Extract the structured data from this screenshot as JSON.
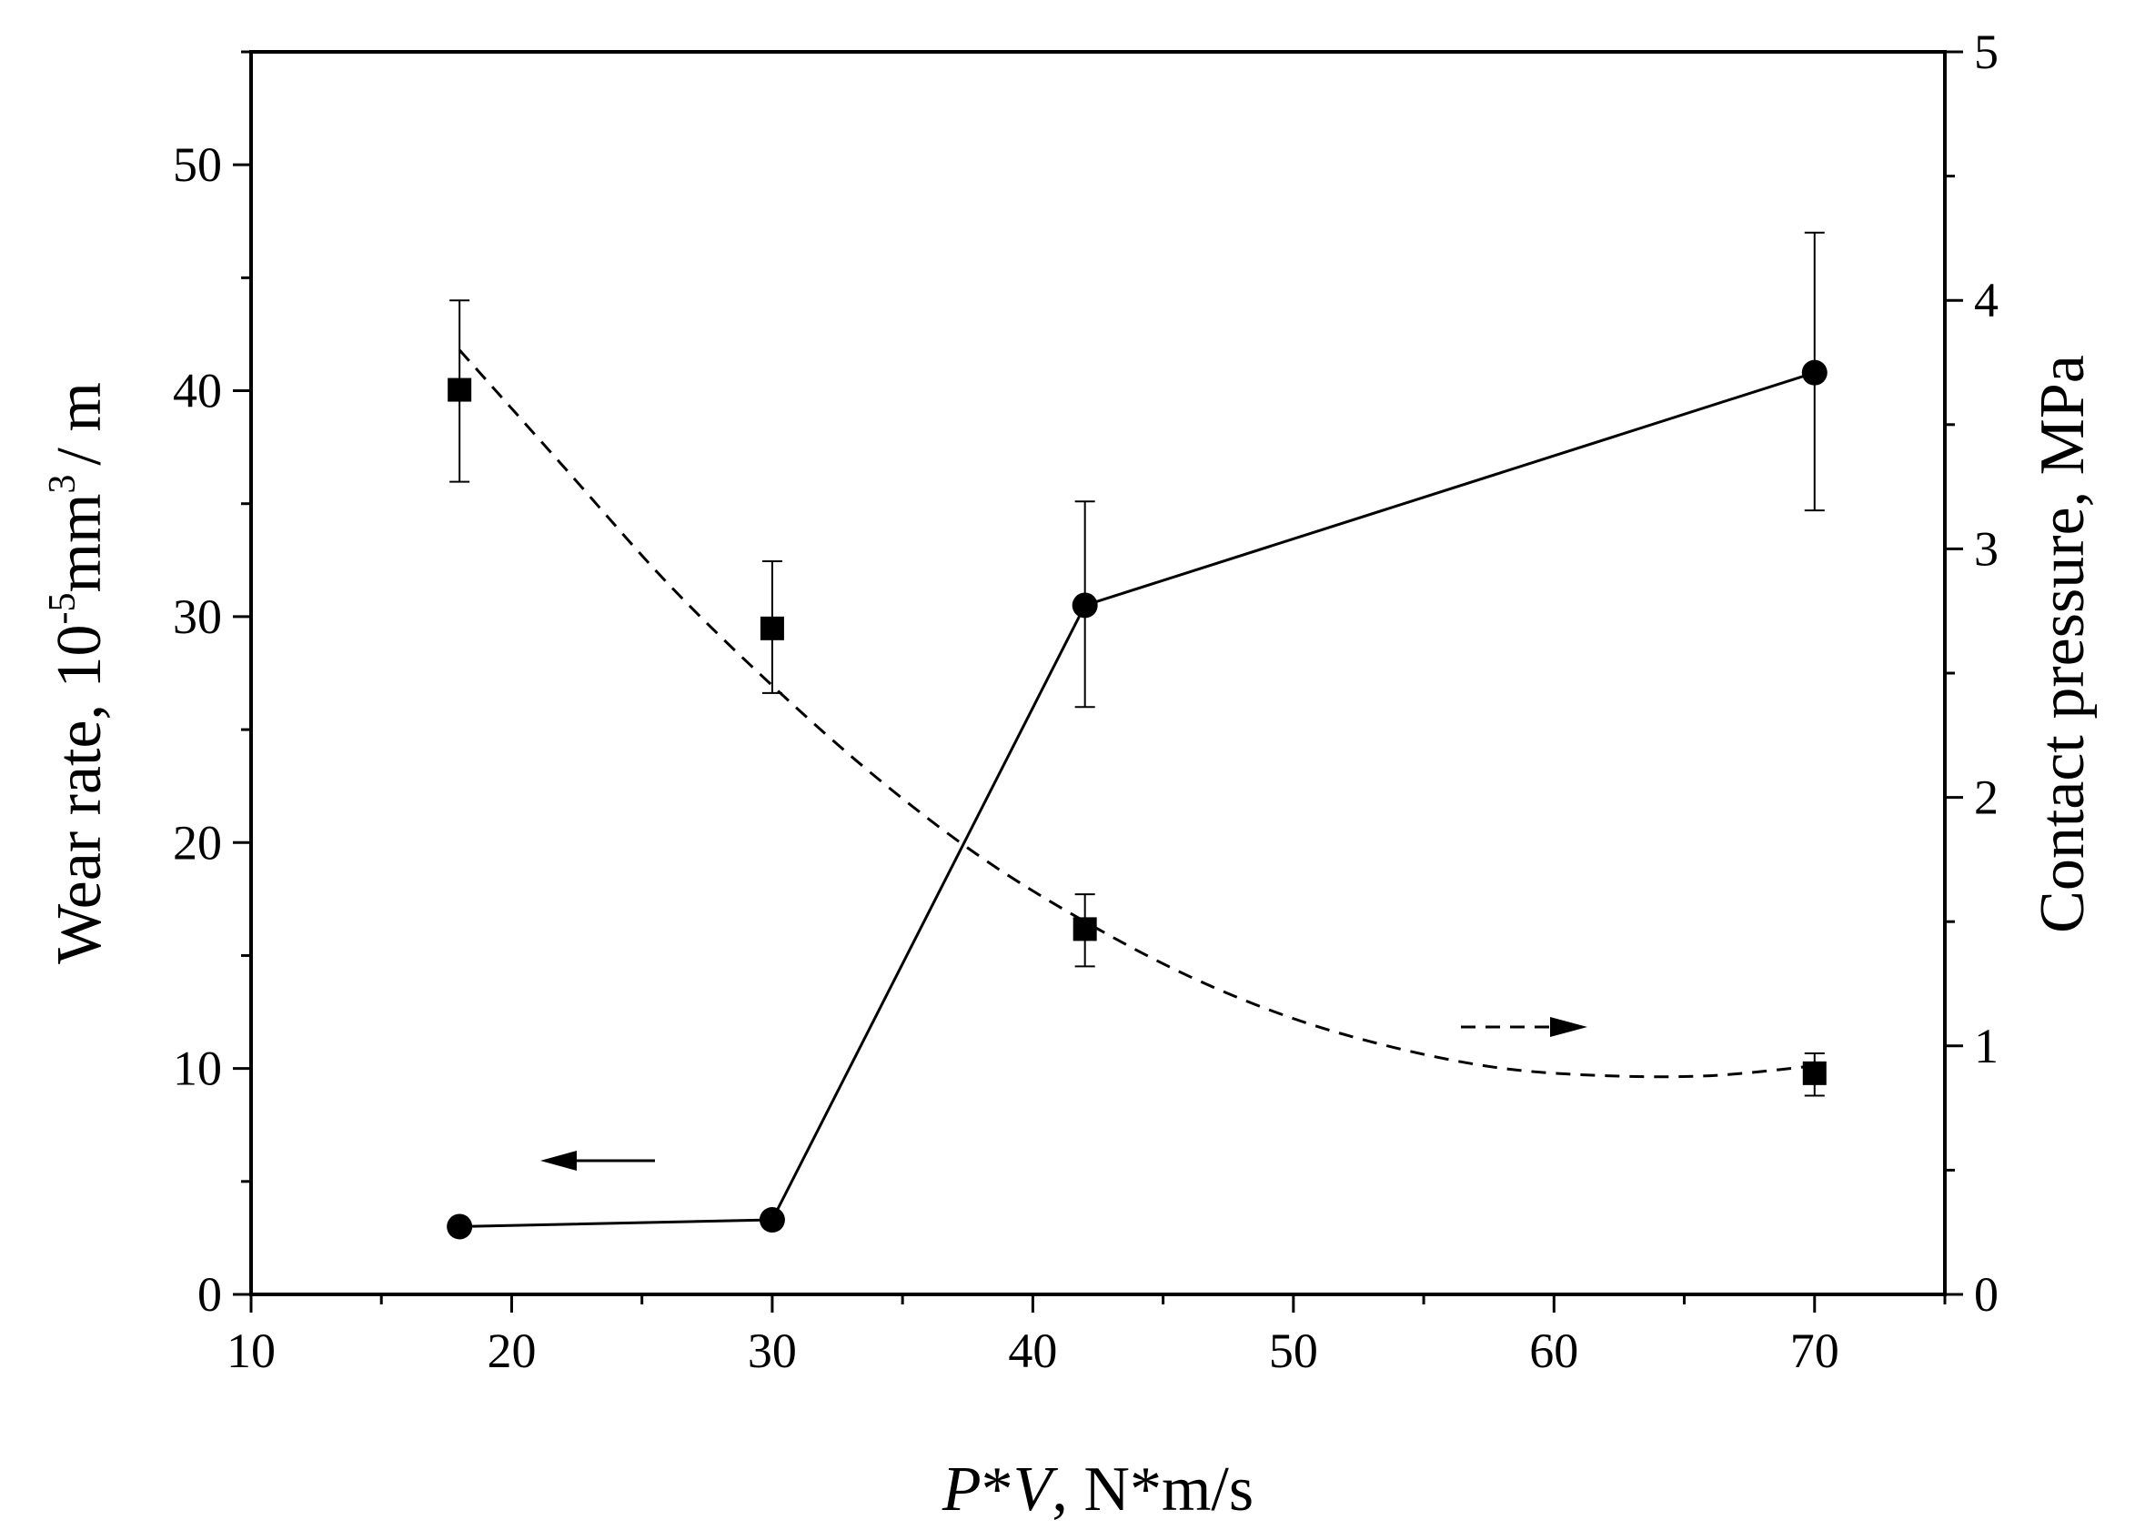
{
  "chart_data": {
    "type": "line",
    "x_axis": {
      "label_italic_p": "P",
      "label_star_1": "*",
      "label_italic_v": "V",
      "label_rest": ", N*m/s",
      "range": [
        10,
        75
      ],
      "ticks": [
        10,
        20,
        30,
        40,
        50,
        60,
        70
      ],
      "tick_labels": [
        "10",
        "20",
        "30",
        "40",
        "50",
        "60",
        "70"
      ]
    },
    "y_left_axis": {
      "label_main": "Wear rate, 10",
      "label_exp1": "-5",
      "label_unit": "mm",
      "label_exp2": "3",
      "label_tail": "/ m",
      "range": [
        0,
        55
      ],
      "ticks": [
        0,
        10,
        20,
        30,
        40,
        50
      ],
      "tick_labels": [
        "0",
        "10",
        "20",
        "30",
        "40",
        "50"
      ]
    },
    "y_right_axis": {
      "label": "Contact pressure, MPa",
      "range": [
        0,
        5
      ],
      "ticks": [
        0,
        1,
        2,
        3,
        4,
        5
      ],
      "tick_labels": [
        "0",
        "1",
        "2",
        "3",
        "4",
        "5"
      ]
    },
    "series": [
      {
        "name": "Wear rate",
        "axis": "left",
        "marker": "circle",
        "line": "solid",
        "x": [
          18,
          30,
          42,
          70
        ],
        "y": [
          3.0,
          3.3,
          30.5,
          40.8
        ],
        "err_low": [
          null,
          null,
          26.0,
          34.7
        ],
        "err_high": [
          null,
          null,
          35.1,
          47.0
        ]
      },
      {
        "name": "Contact pressure",
        "axis": "right",
        "marker": "square",
        "line": "dashed-fit",
        "x": [
          18,
          30,
          42,
          70
        ],
        "y": [
          3.64,
          2.68,
          1.47,
          0.89
        ],
        "err_low": [
          3.27,
          2.42,
          1.32,
          0.8
        ],
        "err_high": [
          4.0,
          2.95,
          1.61,
          0.97
        ]
      }
    ],
    "fit_curve": {
      "series": "Contact pressure",
      "x": [
        18,
        22,
        26,
        30,
        34,
        38,
        42,
        46,
        50,
        54,
        58,
        62,
        66,
        70
      ],
      "y": [
        3.8,
        3.33,
        2.86,
        2.45,
        2.08,
        1.76,
        1.5,
        1.28,
        1.11,
        0.99,
        0.91,
        0.88,
        0.88,
        0.92
      ]
    }
  }
}
